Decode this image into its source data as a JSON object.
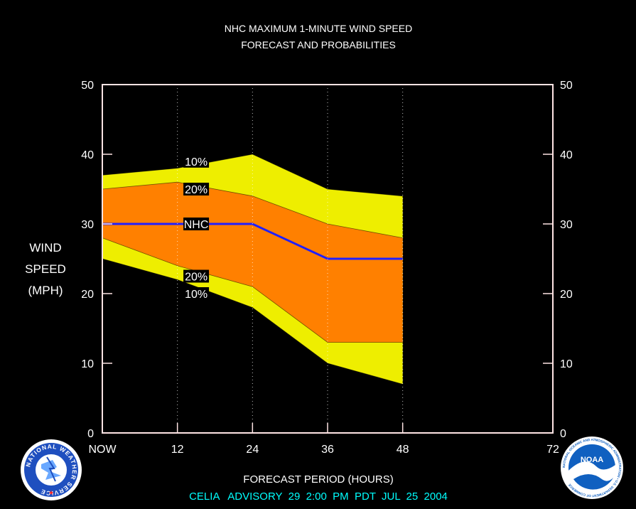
{
  "chart_data": {
    "type": "area",
    "title": "NHC MAXIMUM 1-MINUTE WIND SPEED",
    "subtitle": "FORECAST AND PROBABILITIES",
    "ylabel_lines": [
      "WIND",
      "SPEED",
      "(MPH)"
    ],
    "xlabel": "FORECAST PERIOD (HOURS)",
    "footer": "CELIA   ADVISORY  29  2:00  PM  PDT  JUL  25  2004",
    "x": [
      0,
      12,
      24,
      36,
      48
    ],
    "xlim": [
      0,
      72
    ],
    "ylim": [
      0,
      50
    ],
    "x_ticks": [
      {
        "value": 0,
        "label": "NOW"
      },
      {
        "value": 12,
        "label": "12"
      },
      {
        "value": 24,
        "label": "24"
      },
      {
        "value": 36,
        "label": "36"
      },
      {
        "value": 48,
        "label": "48"
      },
      {
        "value": 72,
        "label": "72"
      }
    ],
    "y_ticks": [
      0,
      10,
      20,
      30,
      40,
      50
    ],
    "vertical_dotted_grid_at": [
      12,
      24,
      36,
      48
    ],
    "series": [
      {
        "name": "10%",
        "role": "upper_10",
        "values": [
          37,
          38,
          40,
          35,
          34
        ]
      },
      {
        "name": "20%",
        "role": "upper_20",
        "values": [
          35,
          36,
          34,
          30,
          28
        ]
      },
      {
        "name": "NHC",
        "role": "forecast",
        "values": [
          30,
          30,
          30,
          25,
          25
        ]
      },
      {
        "name": "20%",
        "role": "lower_20",
        "values": [
          28,
          24,
          21,
          13,
          13
        ]
      },
      {
        "name": "10%",
        "role": "lower_10",
        "values": [
          25,
          22,
          18,
          10,
          7
        ]
      }
    ],
    "labels": [
      {
        "text": "10%",
        "x": 15,
        "y": 39
      },
      {
        "text": "20%",
        "x": 15,
        "y": 35
      },
      {
        "text": "NHC",
        "x": 15,
        "y": 30
      },
      {
        "text": "20%",
        "x": 15,
        "y": 22.5
      },
      {
        "text": "10%",
        "x": 15,
        "y": 20
      }
    ],
    "colors": {
      "outer_band": "#eeee00",
      "inner_band": "#ff8000",
      "forecast_line": "#2020ff",
      "axes": "#ffe4e4",
      "text": "#ffffff",
      "footer_text": "#00ffff"
    }
  },
  "logos": {
    "nws": {
      "text": "NATIONAL WEATHER SERVICE"
    },
    "noaa": {
      "text": "NOAA",
      "ring_text": "NATIONAL OCEANIC AND ATMOSPHERIC ADMINISTRATION • U.S. DEPARTMENT OF COMMERCE"
    }
  }
}
